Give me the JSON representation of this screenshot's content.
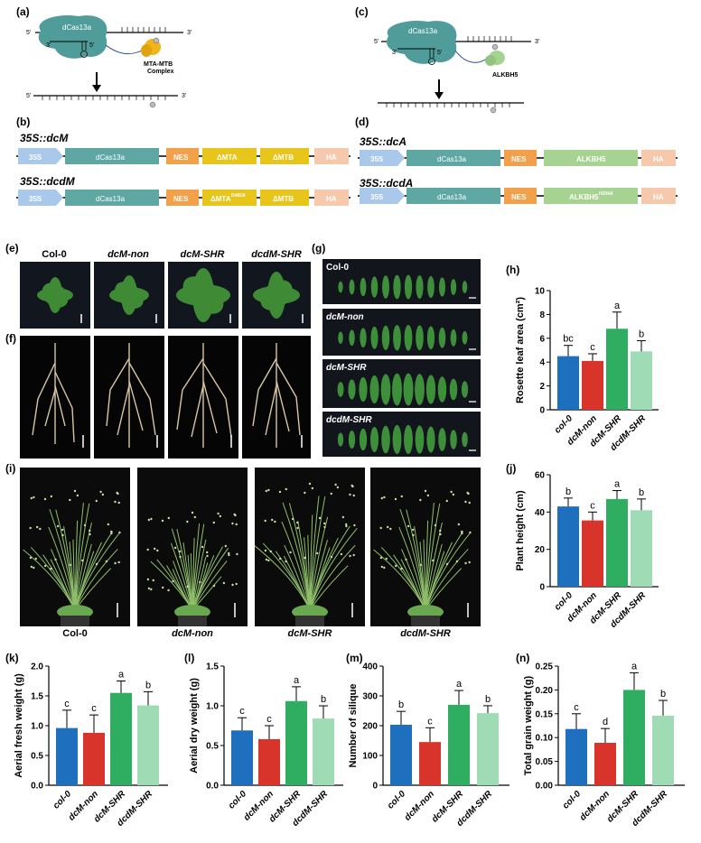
{
  "panels": {
    "a": "(a)",
    "b": "(b)",
    "c": "(c)",
    "d": "(d)",
    "e": "(e)",
    "f": "(f)",
    "g": "(g)",
    "h": "(h)",
    "i": "(i)",
    "j": "(j)",
    "k": "(k)",
    "l": "(l)",
    "m": "(m)",
    "n": "(n)"
  },
  "schematic_a": {
    "protein": "dCas13a",
    "complex_line1": "MTA-MTB",
    "complex_line2": "Complex",
    "five_prime": "5'",
    "three_prime": "3'",
    "mark": "m6A",
    "after": "m6A"
  },
  "schematic_c": {
    "protein": "dCas13a",
    "enzyme": "ALKBH5",
    "five_prime": "5'",
    "three_prime": "3'",
    "mark": "m6A"
  },
  "constructs_b": [
    {
      "title": "35S::dcM",
      "segments": [
        "35S",
        "dCas13a",
        "NES",
        "ΔMTA",
        "ΔMTB",
        "HA"
      ]
    },
    {
      "title": "35S::dcdM",
      "segments": [
        "35S",
        "dCas13a",
        "NES",
        "ΔMTA",
        "ΔMTB",
        "HA"
      ],
      "superscript": "D482A"
    }
  ],
  "constructs_d": [
    {
      "title": "35S::dcA",
      "segments": [
        "35S",
        "dCas13a",
        "NES",
        "ALKBH5",
        "HA"
      ]
    },
    {
      "title": "35S::dcdA",
      "segments": [
        "35S",
        "dCas13a",
        "NES",
        "ALKBH5",
        "HA"
      ],
      "superscript": "H204A"
    }
  ],
  "genotype_labels": [
    "Col-0",
    "dcM-non",
    "dcM-SHR",
    "dcdM-SHR"
  ],
  "leaf_panel_labels": [
    "Col-0",
    "dcM-non",
    "dcM-SHR",
    "dcdM-SHR"
  ],
  "colors": {
    "col0": "#1f6fbf",
    "dcM_non": "#d9342b",
    "dcM_SHR": "#2fae62",
    "dcdM_SHR": "#9fdcb5",
    "promoter": "#a9c8ea",
    "dcas": "#5ea7a3",
    "nes": "#f3a04b",
    "mta": "#e8c51a",
    "alkbh5": "#a6d391",
    "ha": "#f6c9ad",
    "protein_blob": "#4f9c9a",
    "complex_blob": "#f1b51a"
  },
  "chart_data": [
    {
      "id": "h",
      "type": "bar",
      "categories": [
        "col-0",
        "dcM-non",
        "dcM-SHR",
        "dcdM-SHR"
      ],
      "values": [
        4.5,
        4.1,
        6.8,
        4.9
      ],
      "errors": [
        0.9,
        0.6,
        1.4,
        0.9
      ],
      "letters": [
        "bc",
        "c",
        "a",
        "b"
      ],
      "ylabel": "Rosette leaf area (cm²)",
      "ylim": [
        0,
        10
      ],
      "yticks": [
        0,
        2,
        4,
        6,
        8,
        10
      ]
    },
    {
      "id": "j",
      "type": "bar",
      "categories": [
        "col-0",
        "dcM-non",
        "dcM-SHR",
        "dcdM-SHR"
      ],
      "values": [
        43,
        35.5,
        47,
        41
      ],
      "errors": [
        4.5,
        4.5,
        4.5,
        6
      ],
      "letters": [
        "b",
        "c",
        "a",
        "b"
      ],
      "ylabel": "Plant height (cm)",
      "ylim": [
        0,
        60
      ],
      "yticks": [
        0,
        20,
        40,
        60
      ]
    },
    {
      "id": "k",
      "type": "bar",
      "categories": [
        "col-0",
        "dcM-non",
        "dcM-SHR",
        "dcdM-SHR"
      ],
      "values": [
        0.96,
        0.88,
        1.55,
        1.34
      ],
      "errors": [
        0.3,
        0.3,
        0.2,
        0.23
      ],
      "letters": [
        "c",
        "c",
        "a",
        "b"
      ],
      "ylabel": "Aerial fresh weight (g)",
      "ylim": [
        0,
        2.0
      ],
      "yticks": [
        "0.0",
        "0.5",
        "1.0",
        "1.5",
        "2.0"
      ]
    },
    {
      "id": "l",
      "type": "bar",
      "categories": [
        "col-0",
        "dcM-non",
        "dcM-SHR",
        "dcdM-SHR"
      ],
      "values": [
        0.69,
        0.58,
        1.06,
        0.84
      ],
      "errors": [
        0.16,
        0.17,
        0.18,
        0.16
      ],
      "letters": [
        "c",
        "c",
        "a",
        "b"
      ],
      "ylabel": "Aerial dry weight (g)",
      "ylim": [
        0,
        1.5
      ],
      "yticks": [
        "0.0",
        "0.5",
        "1.0",
        "1.5"
      ]
    },
    {
      "id": "m",
      "type": "bar",
      "categories": [
        "col-0",
        "dcM-non",
        "dcM-SHR",
        "dcdM-SHR"
      ],
      "values": [
        203,
        145,
        270,
        242
      ],
      "errors": [
        45,
        48,
        48,
        25
      ],
      "letters": [
        "b",
        "c",
        "a",
        "b"
      ],
      "ylabel": "Number of silique",
      "ylim": [
        0,
        400
      ],
      "yticks": [
        "0",
        "100",
        "200",
        "300",
        "400"
      ]
    },
    {
      "id": "n",
      "type": "bar",
      "categories": [
        "col-0",
        "dcM-non",
        "dcM-SHR",
        "dcdM-SHR"
      ],
      "values": [
        0.118,
        0.089,
        0.2,
        0.146
      ],
      "errors": [
        0.032,
        0.03,
        0.036,
        0.032
      ],
      "letters": [
        "c",
        "d",
        "a",
        "b"
      ],
      "ylabel": "Total grain weight (g)",
      "ylim": [
        0,
        0.25
      ],
      "yticks": [
        "0.00",
        "0.05",
        "0.10",
        "0.15",
        "0.20",
        "0.25"
      ]
    }
  ]
}
